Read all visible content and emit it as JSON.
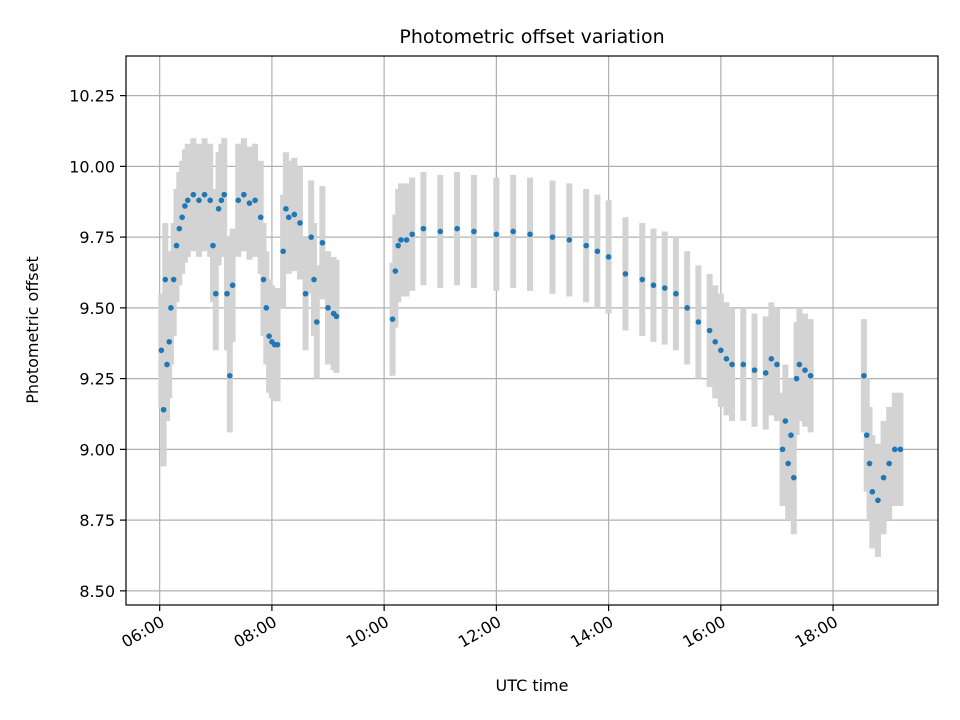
{
  "chart_data": {
    "type": "scatter",
    "title": "Photometric offset variation",
    "xlabel": "UTC time",
    "ylabel": "Photometric offset",
    "x_ticks": [
      "06:00",
      "08:00",
      "10:00",
      "12:00",
      "14:00",
      "16:00",
      "18:00"
    ],
    "x_tick_hours": [
      6,
      8,
      10,
      12,
      14,
      16,
      18
    ],
    "y_ticks": [
      "8.50",
      "8.75",
      "9.00",
      "9.25",
      "9.50",
      "9.75",
      "10.00",
      "10.25"
    ],
    "y_tick_values": [
      8.5,
      8.75,
      9.0,
      9.25,
      9.5,
      9.75,
      10.0,
      10.25
    ],
    "xlim_hours": [
      5.4,
      19.87
    ],
    "ylim": [
      8.45,
      10.39
    ],
    "grid": true,
    "colors": {
      "points": "#1f77b4",
      "error_bars": "#d3d3d3"
    },
    "error_half_width": 0.2,
    "series": [
      {
        "x_hours": [
          6.03,
          6.07,
          6.1,
          6.13,
          6.17,
          6.2,
          6.25,
          6.3,
          6.35,
          6.4,
          6.45,
          6.5,
          6.6,
          6.7,
          6.8,
          6.9,
          6.95,
          7.0,
          7.05,
          7.1,
          7.15,
          7.2,
          7.25,
          7.3,
          7.4,
          7.5,
          7.6,
          7.7,
          7.8,
          7.85,
          7.9,
          7.95,
          8.0,
          8.05,
          8.1,
          8.2,
          8.25,
          8.3,
          8.4,
          8.5,
          8.6,
          8.7,
          8.75,
          8.8,
          8.9,
          9.0,
          9.1,
          9.15,
          10.15,
          10.2,
          10.25,
          10.3,
          10.4,
          10.5,
          10.7,
          11.0,
          11.3,
          11.6,
          12.0,
          12.3,
          12.6,
          13.0,
          13.3,
          13.6,
          13.8,
          14.0,
          14.3,
          14.6,
          14.8,
          15.0,
          15.2,
          15.4,
          15.6,
          15.8,
          15.9,
          16.0,
          16.1,
          16.2,
          16.4,
          16.6,
          16.8,
          16.9,
          17.0,
          17.1,
          17.15,
          17.2,
          17.25,
          17.3,
          17.35,
          17.4,
          17.5,
          17.6,
          18.55,
          18.6,
          18.65,
          18.7,
          18.8,
          18.9,
          19.0,
          19.1,
          19.2
        ],
        "y": [
          9.35,
          9.14,
          9.6,
          9.3,
          9.38,
          9.5,
          9.6,
          9.72,
          9.78,
          9.82,
          9.86,
          9.88,
          9.9,
          9.88,
          9.9,
          9.88,
          9.72,
          9.55,
          9.85,
          9.88,
          9.9,
          9.55,
          9.26,
          9.58,
          9.88,
          9.9,
          9.87,
          9.88,
          9.82,
          9.6,
          9.5,
          9.4,
          9.38,
          9.37,
          9.37,
          9.7,
          9.85,
          9.82,
          9.83,
          9.8,
          9.55,
          9.75,
          9.6,
          9.45,
          9.73,
          9.5,
          9.48,
          9.47,
          9.46,
          9.63,
          9.72,
          9.74,
          9.74,
          9.76,
          9.78,
          9.77,
          9.78,
          9.77,
          9.76,
          9.77,
          9.76,
          9.75,
          9.74,
          9.72,
          9.7,
          9.68,
          9.62,
          9.6,
          9.58,
          9.57,
          9.55,
          9.5,
          9.45,
          9.42,
          9.38,
          9.35,
          9.32,
          9.3,
          9.3,
          9.28,
          9.27,
          9.32,
          9.3,
          9.0,
          9.1,
          8.95,
          9.05,
          8.9,
          9.25,
          9.3,
          9.28,
          9.26,
          9.26,
          9.05,
          8.95,
          8.85,
          8.82,
          8.9,
          8.95,
          9.0,
          9.0
        ]
      }
    ]
  }
}
